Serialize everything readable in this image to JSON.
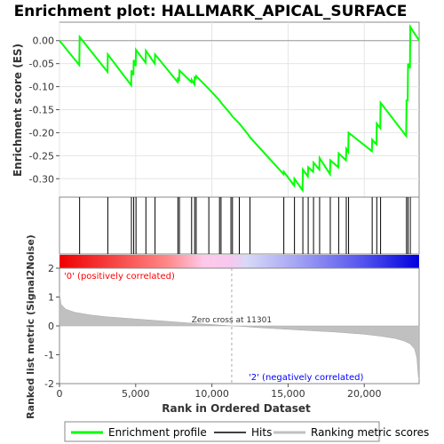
{
  "chart_data": {
    "type": "line",
    "title": "Enrichment plot: HALLMARK_APICAL_SURFACE",
    "xlabel": "Rank in Ordered Dataset",
    "ylabel_top": "Enrichment score (ES)",
    "ylabel_bottom": "Ranked list metric (Signal2Noise)",
    "x_range": [
      0,
      23600
    ],
    "es_ylim": [
      -0.34,
      0.04
    ],
    "es_yticks": [
      "0.00",
      "-0.05",
      "-0.10",
      "-0.15",
      "-0.20",
      "-0.25",
      "-0.30"
    ],
    "es_ytick_values": [
      0.0,
      -0.05,
      -0.1,
      -0.15,
      -0.2,
      -0.25,
      -0.3
    ],
    "metric_ylim": [
      -2,
      2
    ],
    "metric_yticks": [
      "2",
      "1",
      "0",
      "-1",
      "-2"
    ],
    "metric_ytick_values": [
      2,
      1,
      0,
      -1,
      -2
    ],
    "xticks": [
      "0",
      "5,000",
      "10,000",
      "15,000",
      "20,000"
    ],
    "xtick_values": [
      0,
      5000,
      10000,
      15000,
      20000
    ],
    "es_points": [
      [
        0,
        0.0
      ],
      [
        1300,
        -0.053
      ],
      [
        1320,
        0.008
      ],
      [
        3150,
        -0.068
      ],
      [
        3170,
        -0.03
      ],
      [
        4700,
        -0.097
      ],
      [
        4720,
        -0.065
      ],
      [
        4850,
        -0.075
      ],
      [
        4870,
        -0.042
      ],
      [
        5000,
        -0.055
      ],
      [
        5020,
        -0.02
      ],
      [
        5650,
        -0.048
      ],
      [
        5670,
        -0.022
      ],
      [
        6250,
        -0.05
      ],
      [
        6270,
        -0.03
      ],
      [
        7750,
        -0.09
      ],
      [
        7770,
        -0.08
      ],
      [
        7850,
        -0.088
      ],
      [
        7870,
        -0.065
      ],
      [
        8650,
        -0.09
      ],
      [
        8670,
        -0.085
      ],
      [
        8850,
        -0.095
      ],
      [
        8870,
        -0.08
      ],
      [
        8950,
        -0.082
      ],
      [
        8970,
        -0.077
      ],
      [
        9800,
        -0.105
      ],
      [
        10500,
        -0.13
      ],
      [
        10600,
        -0.135
      ],
      [
        11250,
        -0.16
      ],
      [
        11350,
        -0.165
      ],
      [
        11800,
        -0.18
      ],
      [
        12400,
        -0.205
      ],
      [
        12500,
        -0.21
      ],
      [
        14700,
        -0.29
      ],
      [
        14720,
        -0.285
      ],
      [
        15400,
        -0.315
      ],
      [
        15420,
        -0.3
      ],
      [
        15950,
        -0.325
      ],
      [
        15970,
        -0.28
      ],
      [
        16300,
        -0.295
      ],
      [
        16320,
        -0.275
      ],
      [
        16650,
        -0.285
      ],
      [
        16670,
        -0.265
      ],
      [
        17050,
        -0.28
      ],
      [
        17070,
        -0.255
      ],
      [
        17750,
        -0.29
      ],
      [
        17770,
        -0.26
      ],
      [
        18300,
        -0.275
      ],
      [
        18320,
        -0.245
      ],
      [
        18800,
        -0.26
      ],
      [
        18820,
        -0.235
      ],
      [
        18950,
        -0.242
      ],
      [
        18970,
        -0.2
      ],
      [
        20500,
        -0.24
      ],
      [
        20520,
        -0.215
      ],
      [
        20800,
        -0.225
      ],
      [
        20820,
        -0.18
      ],
      [
        21050,
        -0.19
      ],
      [
        21070,
        -0.135
      ],
      [
        22750,
        -0.207
      ],
      [
        22770,
        -0.13
      ],
      [
        22850,
        -0.13
      ],
      [
        22870,
        -0.05
      ],
      [
        23000,
        -0.06
      ],
      [
        23020,
        0.03
      ],
      [
        23600,
        0.0
      ]
    ],
    "hits": [
      1320,
      3170,
      4720,
      4870,
      5020,
      5670,
      6270,
      7770,
      7870,
      8670,
      8870,
      8970,
      9800,
      10500,
      10600,
      11250,
      11350,
      11800,
      12500,
      14720,
      15420,
      15970,
      16320,
      16670,
      17070,
      17770,
      18320,
      18820,
      18970,
      20520,
      20820,
      21070,
      22770,
      22870,
      23020
    ],
    "zero_cross_rank": 11301,
    "zero_cross_label": "Zero cross at 11301",
    "positive_label": "'0' (positively correlated)",
    "negative_label": "'2' (negatively correlated)",
    "metric_profile": [
      [
        0,
        1.15
      ],
      [
        100,
        0.75
      ],
      [
        400,
        0.58
      ],
      [
        1000,
        0.47
      ],
      [
        2000,
        0.38
      ],
      [
        3000,
        0.32
      ],
      [
        4000,
        0.28
      ],
      [
        5000,
        0.24
      ],
      [
        6000,
        0.2
      ],
      [
        7000,
        0.16
      ],
      [
        8000,
        0.12
      ],
      [
        9000,
        0.08
      ],
      [
        10000,
        0.05
      ],
      [
        11301,
        0.0
      ],
      [
        12000,
        -0.02
      ],
      [
        13000,
        -0.06
      ],
      [
        14000,
        -0.09
      ],
      [
        15000,
        -0.12
      ],
      [
        16000,
        -0.15
      ],
      [
        17000,
        -0.18
      ],
      [
        18000,
        -0.21
      ],
      [
        19000,
        -0.25
      ],
      [
        20000,
        -0.29
      ],
      [
        21000,
        -0.35
      ],
      [
        22000,
        -0.43
      ],
      [
        22600,
        -0.52
      ],
      [
        23000,
        -0.62
      ],
      [
        23300,
        -0.8
      ],
      [
        23450,
        -1.1
      ],
      [
        23550,
        -1.75
      ],
      [
        23600,
        -1.85
      ]
    ],
    "colors": {
      "profile": "#00ff00",
      "hits": "#000000",
      "metric_fill": "#c0c0c0",
      "positive": "#ff0000",
      "negative": "#0000ff"
    }
  },
  "legend": {
    "items": [
      {
        "label": "Enrichment profile",
        "color": "#00ff00"
      },
      {
        "label": "Hits",
        "color": "#000000"
      },
      {
        "label": "Ranking metric scores",
        "color": "#c0c0c0"
      }
    ]
  }
}
